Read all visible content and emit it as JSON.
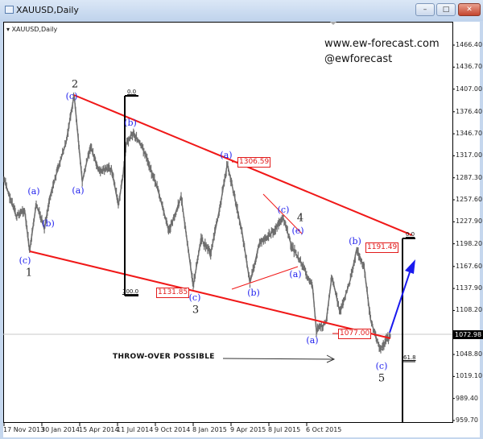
{
  "window": {
    "title": "XAUUSD,Daily",
    "buttons": [
      "minimize",
      "maximize",
      "close"
    ]
  },
  "chart_header": "XAUUSD,Daily",
  "watermark": {
    "site": "www.ew-forecast.com",
    "handle": "@ewforecast"
  },
  "current_price": "1072.98",
  "throw_over_text": "THROW-OVER POSSIBLE",
  "colors": {
    "price": "#6e6e6e",
    "channel": "#f01818",
    "wave_labels": "#2222ee",
    "arrow": "#1a1aee"
  },
  "chart_data": {
    "type": "line",
    "title": "XAUUSD,Daily",
    "ylim": [
      959.7,
      1466.4
    ],
    "y_ticks": [
      "1466.40",
      "1436.70",
      "1407.00",
      "1376.40",
      "1346.70",
      "1317.00",
      "1287.30",
      "1257.60",
      "1227.90",
      "1198.20",
      "1167.60",
      "1137.90",
      "1108.20",
      "1078.50",
      "1048.80",
      "1019.10",
      "989.40",
      "959.70"
    ],
    "x_ticks": [
      "17 Nov 2013",
      "30 Jan 2014",
      "15 Apr 2014",
      "11 Jul 2014",
      "9 Oct 2014",
      "8 Jan 2015",
      "9 Apr 2015",
      "8 Jul 2015",
      "6 Oct 2015"
    ],
    "grid": false,
    "series": [
      {
        "points": [
          [
            "2013-11-17",
            1285
          ],
          [
            "2013-12-11",
            1235
          ],
          [
            "2013-12-27",
            1245
          ],
          [
            "2014-01-06",
            1188
          ],
          [
            "2014-01-19",
            1252
          ],
          [
            "2014-02-04",
            1218
          ],
          [
            "2014-02-15",
            1262
          ],
          [
            "2014-03-03",
            1300
          ],
          [
            "2014-03-19",
            1335
          ],
          [
            "2014-04-04",
            1399
          ],
          [
            "2014-04-21",
            1282
          ],
          [
            "2014-05-10",
            1331
          ],
          [
            "2014-05-28",
            1296
          ],
          [
            "2014-06-27",
            1300
          ],
          [
            "2014-07-13",
            1250
          ],
          [
            "2014-07-24",
            1290
          ],
          [
            "2014-08-01",
            1335
          ],
          [
            "2014-08-18",
            1348
          ],
          [
            "2014-09-13",
            1322
          ],
          [
            "2014-10-13",
            1275
          ],
          [
            "2014-11-11",
            1215
          ],
          [
            "2014-12-10",
            1262
          ],
          [
            "2015-01-08",
            1141
          ],
          [
            "2015-01-27",
            1205
          ],
          [
            "2015-02-19",
            1185
          ],
          [
            "2015-03-14",
            1250
          ],
          [
            "2015-03-31",
            1306
          ],
          [
            "2015-04-16",
            1265
          ],
          [
            "2015-05-05",
            1215
          ],
          [
            "2015-05-24",
            1145
          ],
          [
            "2015-06-16",
            1200
          ],
          [
            "2015-07-19",
            1215
          ],
          [
            "2015-08-12",
            1232
          ],
          [
            "2015-08-31",
            1195
          ],
          [
            "2015-09-25",
            1170
          ],
          [
            "2015-10-20",
            1140
          ],
          [
            "2015-10-29",
            1081
          ],
          [
            "2015-11-21",
            1092
          ],
          [
            "2015-12-05",
            1155
          ],
          [
            "2015-12-24",
            1105
          ],
          [
            "2016-01-18",
            1150
          ],
          [
            "2016-02-02",
            1191
          ],
          [
            "2016-02-20",
            1165
          ],
          [
            "2016-03-06",
            1095
          ],
          [
            "2016-03-29",
            1055
          ],
          [
            "2016-04-14",
            1070
          ],
          [
            "2016-04-23",
            1073
          ]
        ]
      }
    ],
    "price_labels": [
      "1306.59",
      "1131.85",
      "1077.00",
      "1191.49"
    ],
    "fib_labels": {
      "first": [
        "0.0",
        "100.0"
      ],
      "second": [
        "0.0",
        "61.8"
      ]
    },
    "wave_labels": {
      "w1_c": "(c)",
      "w1": "1",
      "a1": "(a)",
      "b1": "(b)",
      "w2_c": "(c)",
      "w2": "2",
      "a2": "(a)",
      "b2": "(b)",
      "c3": "(c)",
      "w3": "3",
      "a3": "(a)",
      "b3": "(b)",
      "a4": "(a)",
      "c4": "(c)",
      "e4": "(e)",
      "w4": "4",
      "a5": "(a)",
      "b5": "(b)",
      "c5": "(c)",
      "w5": "5"
    }
  }
}
